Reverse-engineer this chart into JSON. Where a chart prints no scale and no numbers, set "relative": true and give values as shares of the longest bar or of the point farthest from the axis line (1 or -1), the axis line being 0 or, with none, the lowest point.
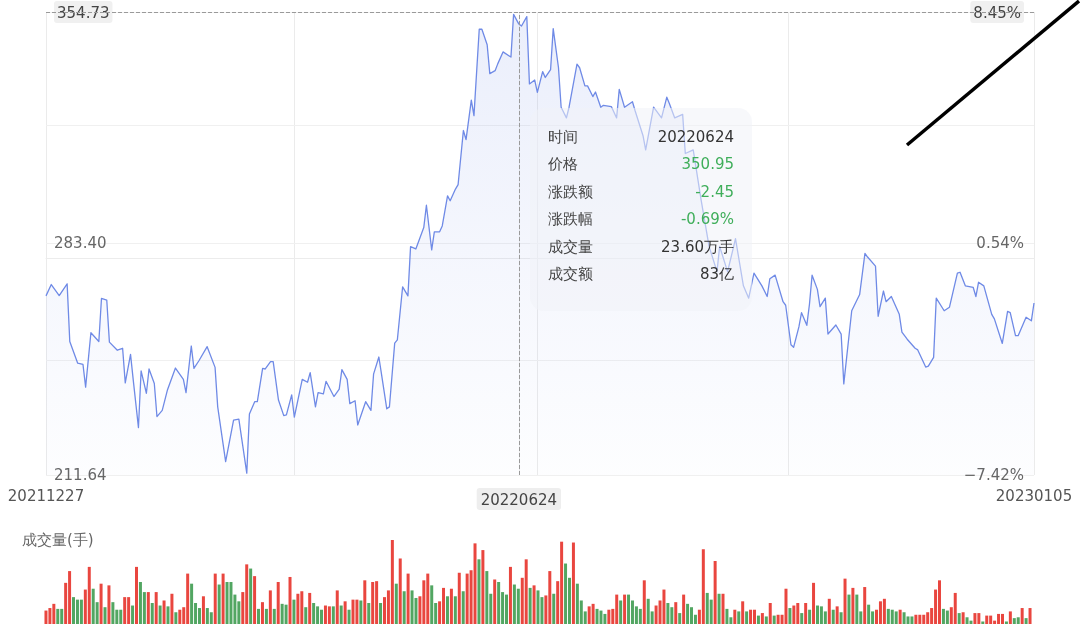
{
  "chart_data": [
    {
      "type": "area",
      "x": [
        "2021-12-27",
        "2021-12-29",
        "2022-01-01",
        "2022-01-04",
        "2022-01-05",
        "2022-01-08",
        "2022-01-10",
        "2022-01-11",
        "2022-01-13",
        "2022-01-16",
        "2022-01-17",
        "2022-01-19",
        "2022-01-20",
        "2022-01-23",
        "2022-01-25",
        "2022-01-26",
        "2022-01-28",
        "2022-01-29",
        "2022-01-31",
        "2022-02-01",
        "2022-02-03",
        "2022-02-04",
        "2022-02-06",
        "2022-02-07",
        "2022-02-09",
        "2022-02-11",
        "2022-02-14",
        "2022-02-17",
        "2022-02-18",
        "2022-02-20",
        "2022-02-21",
        "2022-02-23",
        "2022-02-26",
        "2022-03-01",
        "2022-03-02",
        "2022-03-05",
        "2022-03-08",
        "2022-03-10",
        "2022-03-13",
        "2022-03-14",
        "2022-03-16",
        "2022-03-17",
        "2022-03-19",
        "2022-03-20",
        "2022-03-22",
        "2022-03-23",
        "2022-03-25",
        "2022-03-27",
        "2022-03-28",
        "2022-03-30",
        "2022-03-31",
        "2022-04-03",
        "2022-04-05",
        "2022-04-06",
        "2022-04-08",
        "2022-04-09",
        "2022-04-11",
        "2022-04-12",
        "2022-04-15",
        "2022-04-17",
        "2022-04-18",
        "2022-04-20",
        "2022-04-21",
        "2022-04-23",
        "2022-04-24",
        "2022-04-27",
        "2022-04-29",
        "2022-04-30",
        "2022-05-02",
        "2022-05-03",
        "2022-05-05",
        "2022-05-06",
        "2022-05-08",
        "2022-05-09",
        "2022-05-11",
        "2022-05-13",
        "2022-05-14",
        "2022-05-16",
        "2022-05-19",
        "2022-05-20",
        "2022-05-22",
        "2022-05-23",
        "2022-05-25",
        "2022-05-26",
        "2022-05-28",
        "2022-05-29",
        "2022-05-31",
        "2022-06-01",
        "2022-06-03",
        "2022-06-04",
        "2022-06-06",
        "2022-06-07",
        "2022-06-09",
        "2022-06-10",
        "2022-06-12",
        "2022-06-13",
        "2022-06-15",
        "2022-06-16",
        "2022-06-18",
        "2022-06-21",
        "2022-06-22",
        "2022-06-24",
        "2022-06-25",
        "2022-06-27",
        "2022-06-28",
        "2022-06-30",
        "2022-07-01",
        "2022-07-03",
        "2022-07-04",
        "2022-07-06",
        "2022-07-07",
        "2022-07-09",
        "2022-07-10",
        "2022-07-12",
        "2022-07-13",
        "2022-07-16",
        "2022-07-17",
        "2022-07-19",
        "2022-07-20",
        "2022-07-22",
        "2022-07-23",
        "2022-07-25",
        "2022-07-26",
        "2022-07-29",
        "2022-07-31",
        "2022-08-01",
        "2022-08-03",
        "2022-08-06",
        "2022-08-07",
        "2022-08-10",
        "2022-08-11",
        "2022-08-14",
        "2022-08-17",
        "2022-08-19",
        "2022-08-20",
        "2022-08-22",
        "2022-08-25",
        "2022-08-26",
        "2022-08-29",
        "2022-09-01",
        "2022-09-04",
        "2022-09-07",
        "2022-09-08",
        "2022-09-11",
        "2022-09-13",
        "2022-09-14",
        "2022-09-17",
        "2022-09-19",
        "2022-09-21",
        "2022-09-24",
        "2022-09-26",
        "2022-09-27",
        "2022-09-29",
        "2022-10-02",
        "2022-10-03",
        "2022-10-05",
        "2022-10-06",
        "2022-10-08",
        "2022-10-09",
        "2022-10-11",
        "2022-10-12",
        "2022-10-13",
        "2022-10-15",
        "2022-10-16",
        "2022-10-18",
        "2022-10-19",
        "2022-10-22",
        "2022-10-24",
        "2022-10-25",
        "2022-10-28",
        "2022-10-31",
        "2022-11-02",
        "2022-11-03",
        "2022-11-06",
        "2022-11-07",
        "2022-11-09",
        "2022-11-10",
        "2022-11-12",
        "2022-11-15",
        "2022-11-16",
        "2022-11-18",
        "2022-11-21",
        "2022-11-22",
        "2022-11-25",
        "2022-11-26",
        "2022-11-28",
        "2022-11-29",
        "2022-12-02",
        "2022-12-04",
        "2022-12-07",
        "2022-12-08",
        "2022-12-10",
        "2022-12-13",
        "2022-12-14",
        "2022-12-15",
        "2022-12-17",
        "2022-12-20",
        "2022-12-21",
        "2022-12-24",
        "2022-12-26",
        "2022-12-27",
        "2022-12-29",
        "2022-12-30",
        "2023-01-02",
        "2023-01-04",
        "2023-01-05"
      ],
      "series": [
        {
          "color": "#6f8ae6",
          "values": [
            267.0,
            270.5,
            267.1,
            270.7,
            252.9,
            246.2,
            245.8,
            238.8,
            255.6,
            252.9,
            266.2,
            265.7,
            252.7,
            250.2,
            250.8,
            240.1,
            248.9,
            241.2,
            226.3,
            243.8,
            236.9,
            244.4,
            239.9,
            229.7,
            231.6,
            238.0,
            244.7,
            241.2,
            237.1,
            251.5,
            244.6,
            247.1,
            251.3,
            244.9,
            232.7,
            215.8,
            228.6,
            228.9,
            212.2,
            230.5,
            234.3,
            234.3,
            244.6,
            244.4,
            246.7,
            246.7,
            234.8,
            230.0,
            230.2,
            236.4,
            229.5,
            241.2,
            240.3,
            243.3,
            232.7,
            237.1,
            236.7,
            240.6,
            235.9,
            238.2,
            244.2,
            241.2,
            233.7,
            234.6,
            227.1,
            234.3,
            231.6,
            242.8,
            248.1,
            242.8,
            232.1,
            232.7,
            252.4,
            253.4,
            269.8,
            267.0,
            282.2,
            281.5,
            288.1,
            295.0,
            281.2,
            286.8,
            286.8,
            288.6,
            297.9,
            296.4,
            300.0,
            301.4,
            318.1,
            315.3,
            327.5,
            322.7,
            349.4,
            349.4,
            344.6,
            335.7,
            336.6,
            338.7,
            342.4,
            340.8,
            354.0,
            351.0,
            350.4,
            353.3,
            332.5,
            333.7,
            329.9,
            336.3,
            334.5,
            336.9,
            349.6,
            337.5,
            325.3,
            322.0,
            325.3,
            338.6,
            337.5,
            331.9,
            331.9,
            328.6,
            330.0,
            325.3,
            325.9,
            325.5,
            322.0,
            330.8,
            325.3,
            327.0,
            324.2,
            316.5,
            312.1,
            325.3,
            322.0,
            328.4,
            326.4,
            322.0,
            323.1,
            311.0,
            312.1,
            296.6,
            282.3,
            274.5,
            282.3,
            274.5,
            281.2,
            284.7,
            270.1,
            266.3,
            274.0,
            270.1,
            266.8,
            272.3,
            273.4,
            265.2,
            264.1,
            251.9,
            251.1,
            257.4,
            261.8,
            257.9,
            264.4,
            273.4,
            269.0,
            263.7,
            266.3,
            255.2,
            258.0,
            255.2,
            239.8,
            262.4,
            267.4,
            280.1,
            279.0,
            276.2,
            260.7,
            268.5,
            265.2,
            266.8,
            261.3,
            255.8,
            253.6,
            250.8,
            250.3,
            245.0,
            245.3,
            248.0,
            266.3,
            262.4,
            263.5,
            274.0,
            274.3,
            270.1,
            269.6,
            266.8,
            271.2,
            270.1,
            261.3,
            259.9,
            252.3,
            262.2,
            261.8,
            254.7,
            254.7,
            260.4,
            259.3,
            264.8
          ]
        }
      ],
      "xlim": [
        "2021-12-27",
        "2023-01-05"
      ],
      "xticks": [
        {
          "value": "2021-12-27",
          "label": "20211227"
        },
        {
          "value": "2022-03-31",
          "label": null
        },
        {
          "value": "2022-06-24",
          "label": "20220624"
        },
        {
          "value": "2022-07-01",
          "label": null
        },
        {
          "value": "2022-10-04",
          "label": null
        },
        {
          "value": "2023-01-05",
          "label": "20230105"
        }
      ],
      "ylim": [
        211.64,
        354.73
      ],
      "yticks": [
        211.64,
        {
          "value": 247.2,
          "label": null
        },
        {
          "value": 283.4,
          "label": "283.40"
        },
        {
          "value": 319.8,
          "label": null
        },
        354.73
      ],
      "y2lim": [
        -7.42,
        8.45
      ],
      "y2ticks": [
        {
          "value": -7.42,
          "label": "−7.42%"
        },
        {
          "value": 0.54,
          "label": "0.54%"
        },
        {
          "value": 8.45,
          "label": "8.45%"
        }
      ],
      "grid": true,
      "marker": "none",
      "ref_lines": [
        {
          "axis": "x",
          "value": "2022-06-24",
          "line_style": "dashed",
          "color": "#9a9a9a"
        },
        {
          "axis": "y",
          "value": 354.73,
          "line_style": "dashed",
          "color": "#9a9a9a"
        }
      ],
      "annotations": [
        "时间",
        "20220624",
        "价格",
        "350.95",
        "涨跌额",
        "-2.45",
        "涨跌幅",
        "-0.69%",
        "成交量",
        "23.60万手",
        "成交额",
        "83亿"
      ]
    },
    {
      "type": "bar",
      "title": "成交量(手)",
      "relative": true,
      "categories": [
        null,
        null,
        null,
        null,
        null,
        null,
        null,
        null,
        null,
        null,
        null,
        null,
        null,
        null,
        null,
        null,
        null,
        null,
        null,
        null,
        null,
        null,
        null,
        null,
        null,
        null,
        null,
        null,
        null,
        null,
        null,
        null,
        null,
        null,
        null,
        null,
        null,
        null,
        null,
        null,
        null,
        null,
        null,
        null,
        null,
        null,
        null,
        null,
        null,
        null,
        null,
        null,
        null,
        null,
        null,
        null,
        null,
        null,
        null,
        null,
        null,
        null,
        null,
        null,
        null,
        null,
        null,
        null,
        null,
        null,
        null,
        null,
        null,
        null,
        null,
        null,
        null,
        null,
        null,
        null,
        null,
        null,
        null,
        null,
        null,
        null,
        null,
        null,
        null,
        null,
        null,
        null,
        null,
        null,
        null,
        null,
        null,
        null,
        null,
        null,
        null,
        null,
        null,
        null,
        null,
        null,
        null,
        null,
        null,
        null,
        null,
        null,
        null,
        null,
        null,
        null,
        null,
        null,
        null,
        null,
        null,
        null,
        null,
        null,
        null,
        null,
        null,
        null,
        null,
        null,
        null,
        null,
        null,
        null,
        null,
        null,
        null,
        null,
        null,
        null,
        null,
        null,
        null,
        null,
        null,
        null,
        null,
        null,
        null,
        null,
        null,
        null,
        null,
        null,
        null,
        null,
        null,
        null,
        null,
        null,
        null,
        null,
        null,
        null,
        null,
        null,
        null,
        null,
        null,
        null,
        null,
        null,
        null,
        null,
        null,
        null,
        null,
        null,
        null,
        null,
        null,
        null,
        null,
        null,
        null,
        null,
        null,
        null,
        null,
        null,
        null,
        null,
        null,
        null,
        null,
        null,
        null,
        null,
        null,
        null,
        null,
        null,
        null,
        null,
        null,
        null,
        null,
        null,
        null,
        null,
        null,
        null,
        null,
        null,
        null,
        null,
        null,
        null,
        null,
        null,
        null,
        null,
        null,
        null,
        null,
        null,
        null,
        null,
        null,
        null,
        null,
        null,
        null,
        null,
        null,
        null,
        null,
        null,
        null,
        null,
        null,
        null,
        null,
        null,
        null,
        null,
        null,
        null,
        null,
        null,
        null
      ],
      "values": [
        0.16,
        0.19,
        0.24,
        0.18,
        0.18,
        0.49,
        0.63,
        0.32,
        0.29,
        0.29,
        0.41,
        0.68,
        0.42,
        0.26,
        0.48,
        0.2,
        0.46,
        0.26,
        0.17,
        0.17,
        0.32,
        0.32,
        0.22,
        0.68,
        0.5,
        0.38,
        0.38,
        0.25,
        0.38,
        0.22,
        0.28,
        0.21,
        0.36,
        0.14,
        0.17,
        0.2,
        0.6,
        0.48,
        0.25,
        0.19,
        0.33,
        0.19,
        0.14,
        0.6,
        0.47,
        0.6,
        0.5,
        0.5,
        0.35,
        0.27,
        0.38,
        0.71,
        0.66,
        0.57,
        0.18,
        0.26,
        0.18,
        0.4,
        0.18,
        0.5,
        0.24,
        0.23,
        0.56,
        0.29,
        0.36,
        0.39,
        0.2,
        0.37,
        0.25,
        0.21,
        0.17,
        0.22,
        0.21,
        0.21,
        0.4,
        0.22,
        0.27,
        0.17,
        0.29,
        0.29,
        0.28,
        0.52,
        0.25,
        0.5,
        0.51,
        0.25,
        0.32,
        0.4,
        1,
        0.48,
        0.78,
        0.39,
        0.6,
        0.4,
        0.31,
        0.33,
        0.52,
        0.6,
        0.46,
        0.25,
        0.27,
        0.43,
        0.33,
        0.42,
        0.33,
        0.61,
        0.39,
        0.6,
        0.64,
        0.96,
        0.77,
        0.88,
        0.63,
        0.36,
        0.53,
        0.5,
        0.38,
        0.35,
        0.68,
        0.47,
        0.42,
        0.55,
        0.77,
        0.43,
        0.46,
        0.4,
        0.32,
        0.34,
        0.63,
        0.36,
        0.51,
        0.98,
        0.72,
        0.55,
        0.97,
        0.48,
        0.28,
        0.15,
        0.21,
        0.24,
        0.18,
        0.16,
        0.12,
        0.17,
        0.18,
        0.35,
        0.28,
        0.35,
        0.35,
        0.28,
        0.21,
        0.18,
        0.52,
        0.3,
        0.15,
        0.22,
        0.28,
        0.41,
        0.25,
        0.2,
        0.26,
        0.13,
        0.35,
        0.24,
        0.2,
        0.11,
        0.17,
        0.89,
        0.37,
        0.29,
        0.75,
        0.36,
        0.36,
        0.18,
        0.08,
        0.17,
        0.15,
        0.27,
        0.15,
        0.17,
        0.17,
        0.1,
        0.13,
        0.09,
        0.25,
        0.1,
        0.11,
        0.11,
        0.42,
        0.19,
        0.22,
        0.25,
        0.13,
        0.25,
        0.17,
        0.49,
        0.22,
        0.21,
        0.15,
        0.3,
        0.17,
        0.21,
        0.14,
        0.54,
        0.35,
        0.43,
        0.35,
        0.15,
        0.44,
        0.23,
        0.15,
        0.17,
        0.27,
        0.3,
        0.18,
        0.17,
        0.15,
        0.17,
        0.14,
        0.09,
        0.09,
        0.11,
        0.11,
        0.11,
        0.14,
        0.19,
        0.41,
        0.52,
        0.18,
        0.16,
        0.2,
        0.37,
        0.13,
        0.14,
        0.08,
        0.04,
        0.13,
        0.13,
        0.03,
        0.1,
        0.1,
        0.04,
        0.12,
        0.12,
        0.03,
        0.15,
        0.07,
        0.08,
        0.19,
        0.07,
        0.19
      ],
      "colors": [
        "#e9463f",
        "#e9463f",
        "#e9463f",
        "#52a662",
        "#52a662",
        "#e9463f",
        "#e9463f",
        "#52a662",
        "#52a662",
        "#52a662",
        "#e9463f",
        "#e9463f",
        "#52a662",
        "#52a662",
        "#e9463f",
        "#52a662",
        "#e9463f",
        "#52a662",
        "#52a662",
        "#52a662",
        "#e9463f",
        "#e9463f",
        "#52a662",
        "#e9463f",
        "#52a662",
        "#52a662",
        "#e9463f",
        "#52a662",
        "#e9463f",
        "#52a662",
        "#e9463f",
        "#52a662",
        "#e9463f",
        "#52a662",
        "#e9463f",
        "#e9463f",
        "#e9463f",
        "#52a662",
        "#52a662",
        "#52a662",
        "#e9463f",
        "#52a662",
        "#52a662",
        "#e9463f",
        "#52a662",
        "#e9463f",
        "#52a662",
        "#52a662",
        "#52a662",
        "#52a662",
        "#e9463f",
        "#e9463f",
        "#52a662",
        "#e9463f",
        "#52a662",
        "#e9463f",
        "#52a662",
        "#e9463f",
        "#52a662",
        "#e9463f",
        "#52a662",
        "#52a662",
        "#e9463f",
        "#52a662",
        "#e9463f",
        "#e9463f",
        "#52a662",
        "#e9463f",
        "#52a662",
        "#52a662",
        "#52a662",
        "#e9463f",
        "#e9463f",
        "#52a662",
        "#e9463f",
        "#52a662",
        "#e9463f",
        "#52a662",
        "#e9463f",
        "#e9463f",
        "#52a662",
        "#e9463f",
        "#52a662",
        "#e9463f",
        "#e9463f",
        "#52a662",
        "#e9463f",
        "#e9463f",
        "#e9463f",
        "#52a662",
        "#e9463f",
        "#52a662",
        "#e9463f",
        "#52a662",
        "#52a662",
        "#e9463f",
        "#e9463f",
        "#e9463f",
        "#52a662",
        "#52a662",
        "#e9463f",
        "#e9463f",
        "#52a662",
        "#e9463f",
        "#52a662",
        "#e9463f",
        "#52a662",
        "#e9463f",
        "#e9463f",
        "#e9463f",
        "#52a662",
        "#e9463f",
        "#52a662",
        "#52a662",
        "#e9463f",
        "#52a662",
        "#52a662",
        "#52a662",
        "#e9463f",
        "#52a662",
        "#52a662",
        "#e9463f",
        "#e9463f",
        "#52a662",
        "#e9463f",
        "#52a662",
        "#52a662",
        "#e9463f",
        "#e9463f",
        "#52a662",
        "#e9463f",
        "#e9463f",
        "#52a662",
        "#52a662",
        "#e9463f",
        "#52a662",
        "#52a662",
        "#52a662",
        "#e9463f",
        "#e9463f",
        "#52a662",
        "#52a662",
        "#52a662",
        "#e9463f",
        "#e9463f",
        "#e9463f",
        "#52a662",
        "#e9463f",
        "#52a662",
        "#52a662",
        "#52a662",
        "#52a662",
        "#e9463f",
        "#52a662",
        "#52a662",
        "#e9463f",
        "#e9463f",
        "#e9463f",
        "#52a662",
        "#52a662",
        "#e9463f",
        "#52a662",
        "#e9463f",
        "#52a662",
        "#52a662",
        "#52a662",
        "#e9463f",
        "#e9463f",
        "#52a662",
        "#52a662",
        "#e9463f",
        "#52a662",
        "#e9463f",
        "#52a662",
        "#52a662",
        "#e9463f",
        "#52a662",
        "#e9463f",
        "#52a662",
        "#e9463f",
        "#e9463f",
        "#52a662",
        "#e9463f",
        "#52a662",
        "#e9463f",
        "#52a662",
        "#e9463f",
        "#e9463f",
        "#e9463f",
        "#52a662",
        "#e9463f",
        "#e9463f",
        "#52a662",
        "#e9463f",
        "#52a662",
        "#e9463f",
        "#52a662",
        "#52a662",
        "#52a662",
        "#e9463f",
        "#52a662",
        "#e9463f",
        "#52a662",
        "#e9463f",
        "#52a662",
        "#e9463f",
        "#52a662",
        "#52a662",
        "#e9463f",
        "#52a662",
        "#52a662",
        "#e9463f",
        "#e9463f",
        "#e9463f",
        "#52a662",
        "#52a662",
        "#52a662",
        "#e9463f",
        "#52a662",
        "#52a662",
        "#52a662",
        "#e9463f",
        "#e9463f",
        "#e9463f",
        "#e9463f",
        "#e9463f",
        "#e9463f",
        "#e9463f",
        "#52a662",
        "#52a662",
        "#e9463f",
        "#e9463f",
        "#52a662",
        "#e9463f",
        "#52a662",
        "#52a662",
        "#e9463f",
        "#e9463f",
        "#52a662",
        "#e9463f",
        "#e9463f",
        "#e9463f",
        "#e9463f",
        "#e9463f",
        "#52a662",
        "#e9463f",
        "#52a662",
        "#52a662",
        "#e9463f",
        "#52a662",
        "#e9463f"
      ]
    }
  ]
}
